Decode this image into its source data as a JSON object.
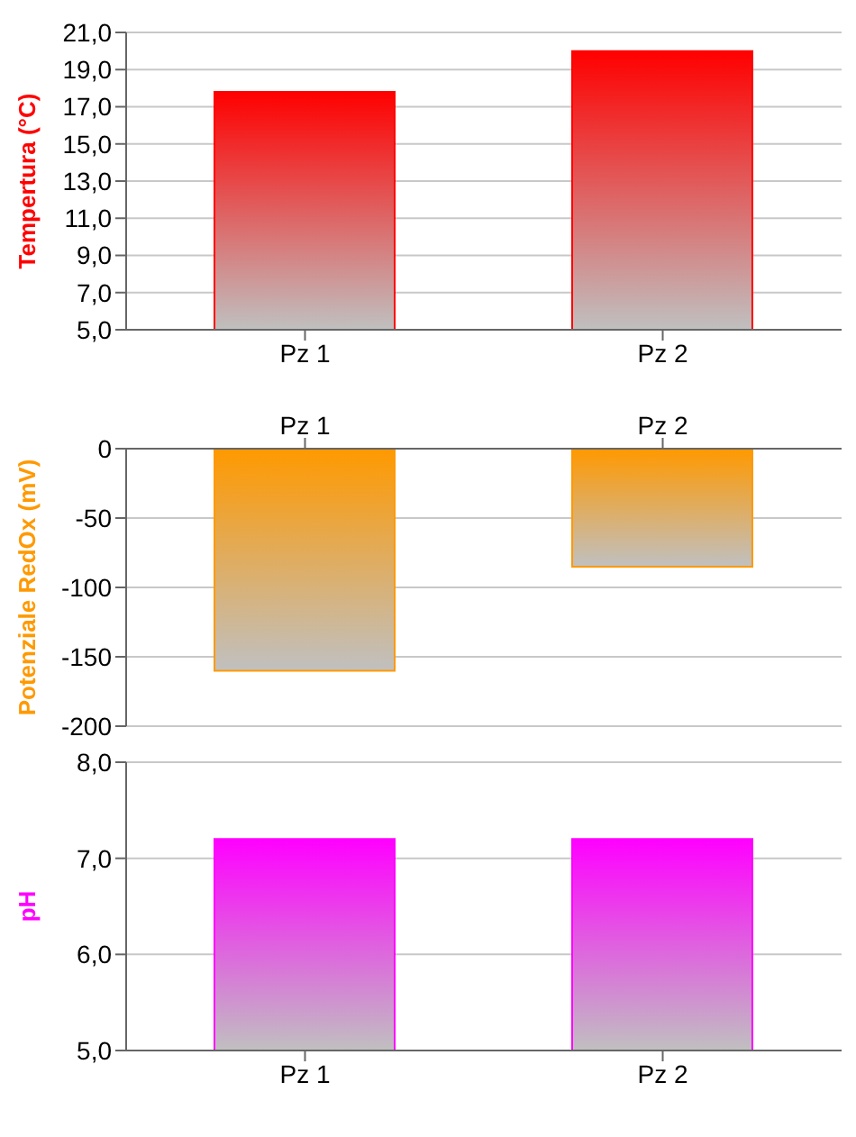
{
  "chart_data": [
    {
      "type": "bar",
      "ylabel": "Tempertura (°C)",
      "categories": [
        "Pz 1",
        "Pz 2"
      ],
      "series": [
        {
          "color": "#ff0000",
          "values": [
            17.8,
            20.0
          ]
        }
      ],
      "ylim": [
        5,
        21
      ],
      "yticks": [
        {
          "value": 5,
          "label": "5,0"
        },
        {
          "value": 7,
          "label": "7,0"
        },
        {
          "value": 9,
          "label": "9,0"
        },
        {
          "value": 11,
          "label": "11,0"
        },
        {
          "value": 13,
          "label": "13,0"
        },
        {
          "value": 15,
          "label": "15,0"
        },
        {
          "value": 17,
          "label": "17,0"
        },
        {
          "value": 19,
          "label": "19,0"
        },
        {
          "value": 21,
          "label": "21,0"
        }
      ],
      "grid": "y",
      "legend": false
    },
    {
      "type": "bar",
      "ylabel": "Potenziale RedOx (mV)",
      "categories": [
        "Pz 1",
        "Pz 2"
      ],
      "series": [
        {
          "color": "#ff9900",
          "values": [
            -160,
            -85
          ]
        }
      ],
      "ylim": [
        -200,
        0
      ],
      "yticks": [
        -200,
        -150,
        -100,
        -50,
        0
      ],
      "grid": "y",
      "legend": false
    },
    {
      "type": "bar",
      "ylabel": "pH",
      "categories": [
        "Pz 1",
        "Pz 2"
      ],
      "series": [
        {
          "color": "#ff00ff",
          "values": [
            7.2,
            7.2
          ]
        }
      ],
      "ylim": [
        5,
        8
      ],
      "yticks": [
        {
          "value": 5,
          "label": "5,0"
        },
        {
          "value": 6,
          "label": "6,0"
        },
        {
          "value": 7,
          "label": "7,0"
        },
        {
          "value": 8,
          "label": "8,0"
        }
      ],
      "grid": "y",
      "legend": false
    }
  ]
}
